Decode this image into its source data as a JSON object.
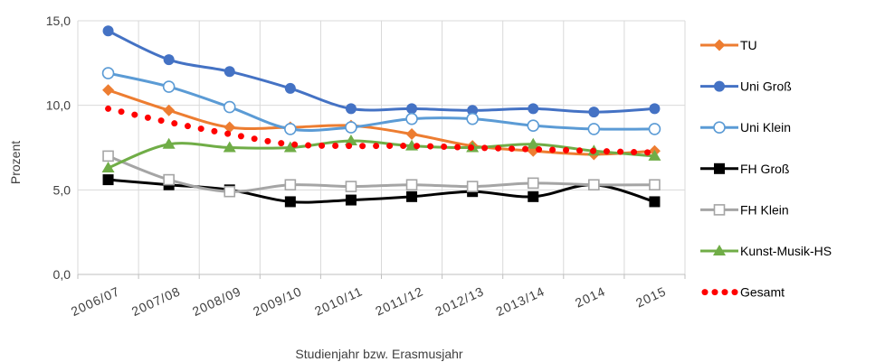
{
  "chart_data": {
    "type": "line",
    "title": "",
    "xlabel": "Studienjahr bzw. Erasmusjahr",
    "ylabel": "Prozent",
    "ylim": [
      0,
      15
    ],
    "yticks": [
      "0,0",
      "5,0",
      "10,0",
      "15,0"
    ],
    "grid": true,
    "legend_position": "right",
    "categories": [
      "2006/07",
      "2007/08",
      "2008/09",
      "2009/10",
      "2010/11",
      "2011/12",
      "2012/13",
      "2013/14",
      "2014",
      "2015"
    ],
    "series": [
      {
        "name": "TU",
        "color": "#ED7D31",
        "marker": "diamond",
        "values": [
          10.9,
          9.7,
          8.7,
          8.7,
          8.8,
          8.3,
          7.6,
          7.3,
          7.1,
          7.3
        ]
      },
      {
        "name": "Uni Groß",
        "color": "#4472C4",
        "marker": "circle",
        "values": [
          14.4,
          12.7,
          12.0,
          11.0,
          9.8,
          9.8,
          9.7,
          9.8,
          9.6,
          9.8
        ]
      },
      {
        "name": "Uni Klein",
        "color": "#5B9BD5",
        "marker": "open-circle",
        "values": [
          11.9,
          11.1,
          9.9,
          8.6,
          8.7,
          9.2,
          9.2,
          8.8,
          8.6,
          8.6
        ]
      },
      {
        "name": "FH Groß",
        "color": "#000000",
        "marker": "square",
        "values": [
          5.6,
          5.3,
          5.0,
          4.3,
          4.4,
          4.6,
          4.9,
          4.6,
          5.3,
          4.3
        ]
      },
      {
        "name": "FH Klein",
        "color": "#A5A5A5",
        "marker": "open-square",
        "values": [
          7.0,
          5.6,
          4.9,
          5.3,
          5.2,
          5.3,
          5.2,
          5.4,
          5.3,
          5.3
        ]
      },
      {
        "name": "Kunst-Musik-HS",
        "color": "#70AD47",
        "marker": "triangle",
        "values": [
          6.3,
          7.7,
          7.5,
          7.5,
          7.9,
          7.6,
          7.5,
          7.7,
          7.3,
          7.0
        ]
      },
      {
        "name": "Gesamt",
        "color": "#FF0000",
        "marker": "dots",
        "values": [
          9.8,
          9.0,
          8.3,
          7.7,
          7.6,
          7.6,
          7.5,
          7.4,
          7.3,
          7.2
        ]
      }
    ]
  }
}
